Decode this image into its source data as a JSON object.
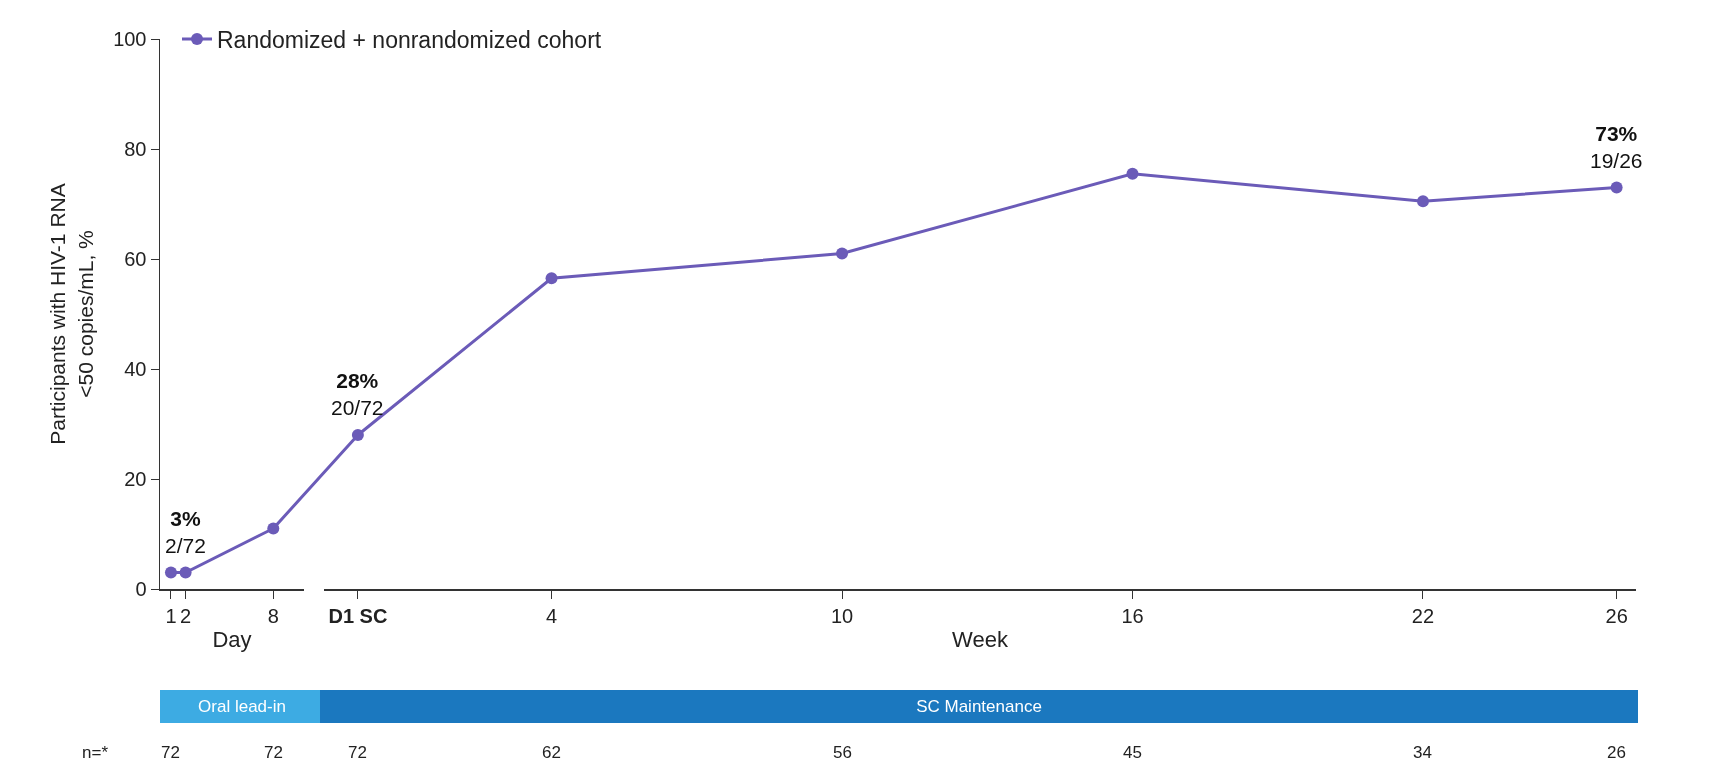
{
  "chart_data": [
    {
      "type": "line",
      "xlabel": "Day",
      "ylabel": "Participants with HIV-1 RNA\n<50 copies/mL, %",
      "x": [
        1,
        2,
        8
      ],
      "series": [
        {
          "color": "#6b5bb8",
          "values": [
            3,
            3,
            11
          ],
          "value_labels": [
            null,
            "3%\n2/72",
            null
          ]
        }
      ],
      "xlim": [
        0.25,
        10.1
      ],
      "xticks": [
        1,
        2,
        8
      ],
      "ylim": [
        0,
        100
      ],
      "yticks": [
        0,
        20,
        40,
        60,
        80,
        100
      ],
      "marker": "circle",
      "line_style": "solid",
      "grid": false,
      "annotations": [
        "Oral lead-in",
        "n=*",
        "72",
        "72"
      ]
    },
    {
      "type": "line",
      "xlabel": "Week",
      "x": [
        0,
        4,
        10,
        16,
        22,
        26
      ],
      "series": [
        {
          "name": "Randomized + nonrandomized cohort",
          "color": "#6b5bb8",
          "values": [
            28,
            56.5,
            61,
            75.5,
            70.5,
            73
          ],
          "value_labels": [
            "28%\n20/72",
            null,
            null,
            null,
            null,
            "73%\n19/26"
          ]
        }
      ],
      "xlim": [
        -0.7,
        26.4
      ],
      "xticks": [
        {
          "value": 0,
          "label": "D1 SC"
        },
        4,
        10,
        16,
        22,
        26
      ],
      "ylim": [
        0,
        100
      ],
      "yticks": [
        0,
        20,
        40,
        60,
        80,
        100
      ],
      "tick_labels": "x",
      "legend": "top left",
      "marker": "circle",
      "line_style": "solid",
      "grid": false,
      "annotations": [
        "SC Maintenance",
        "72",
        "62",
        "56",
        "45",
        "34",
        "26"
      ]
    }
  ]
}
